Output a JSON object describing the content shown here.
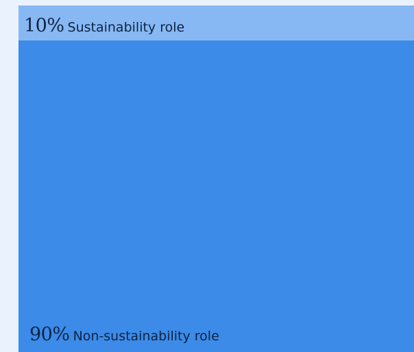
{
  "chart_data": {
    "type": "bar",
    "orientation": "stacked-vertical",
    "categories": [
      "Sustainability role",
      "Non-sustainability role"
    ],
    "values": [
      10,
      90
    ],
    "value_labels": [
      "10%",
      "90%"
    ],
    "colors": [
      "#87b8f4",
      "#3c8be9"
    ],
    "title": "",
    "xlabel": "",
    "ylabel": ""
  }
}
